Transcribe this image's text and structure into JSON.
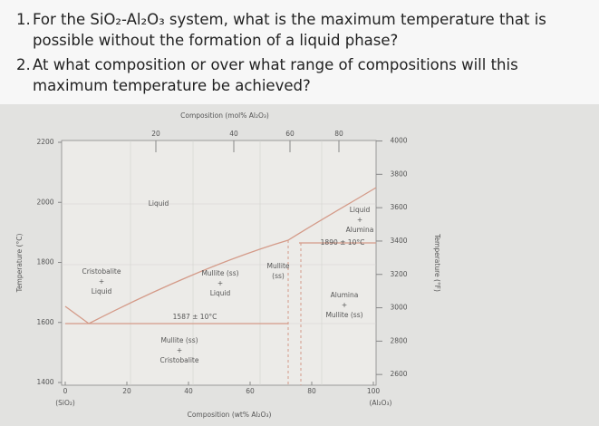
{
  "questions": [
    {
      "number": "1.",
      "text": "For the SiO₂-Al₂O₃ system, what is the maximum temperature that is possible without the formation of a liquid phase?"
    },
    {
      "number": "2.",
      "text": "At what composition or over what range of compositions will this maximum temperature be achieved?"
    }
  ],
  "diagram": {
    "top_axis_label": "Composition (mol% Al₂O₃)",
    "top_ticks": [
      20,
      40,
      60,
      80
    ],
    "bottom_axis_label": "Composition (wt% Al₂O₃)",
    "bottom_ticks": [
      0,
      20,
      40,
      60,
      80,
      100
    ],
    "bottom_end_labels": [
      "(SiO₂)",
      "(Al₂O₃)"
    ],
    "left_axis_label": "Temperature (°C)",
    "left_ticks": [
      2200,
      2000,
      1800,
      1600,
      1400
    ],
    "right_axis_label": "Temperature (°F)",
    "right_ticks": [
      4000,
      3800,
      3600,
      3400,
      3200,
      3000,
      2800,
      2600
    ],
    "region_labels": [
      [
        "Liquid"
      ],
      [
        "Cristobalite",
        "+",
        "Liquid"
      ],
      [
        "Mullite (ss)",
        "+",
        "Liquid"
      ],
      [
        "Mullite",
        "(ss)"
      ],
      [
        "Liquid",
        "+",
        "Alumina"
      ],
      [
        "Alumina",
        "+",
        "Mullite (ss)"
      ],
      [
        "Mullite (ss)",
        "+",
        "Cristobalite"
      ]
    ],
    "annotations": [
      "1587 ± 10°C",
      "1890 ± 10°C"
    ]
  }
}
